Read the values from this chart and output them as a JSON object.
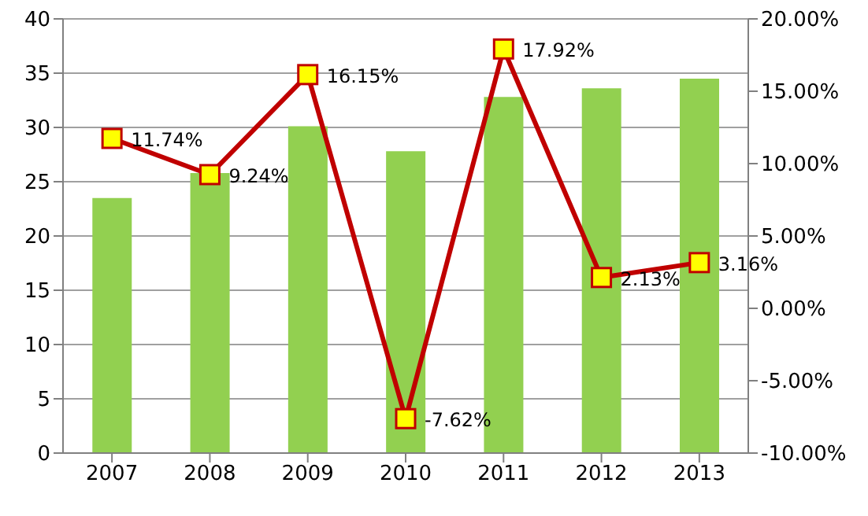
{
  "chart_data": {
    "type": "bar",
    "categories": [
      "2007",
      "2008",
      "2009",
      "2010",
      "2011",
      "2012",
      "2013"
    ],
    "series": [
      {
        "color": "#92d050",
        "values": [
          23.5,
          25.8,
          30.1,
          27.8,
          32.8,
          33.6,
          34.5
        ]
      },
      {
        "type": "line",
        "color": "#c00000",
        "axis": "y2",
        "marker": "square",
        "values": [
          11.74,
          9.24,
          16.15,
          -7.62,
          17.92,
          2.13,
          3.16
        ],
        "value_labels": [
          "11.74%",
          "9.24%",
          "16.15%",
          "-7.62%",
          "17.92%",
          "2.13%",
          "3.16%"
        ]
      }
    ],
    "ylim": [
      0,
      40
    ],
    "yticks": [
      0,
      5,
      10,
      15,
      20,
      25,
      30,
      35,
      40
    ],
    "y2lim": [
      -10,
      20
    ],
    "y2ticks": [
      {
        "value": -10,
        "label": "-10.00%"
      },
      {
        "value": -5,
        "label": "-5.00%"
      },
      {
        "value": 0,
        "label": "0.00%"
      },
      {
        "value": 5,
        "label": "5.00%"
      },
      {
        "value": 10,
        "label": "10.00%"
      },
      {
        "value": 15,
        "label": "15.00%"
      },
      {
        "value": 20,
        "label": "20.00%"
      }
    ],
    "grid": "y",
    "legend": false
  }
}
